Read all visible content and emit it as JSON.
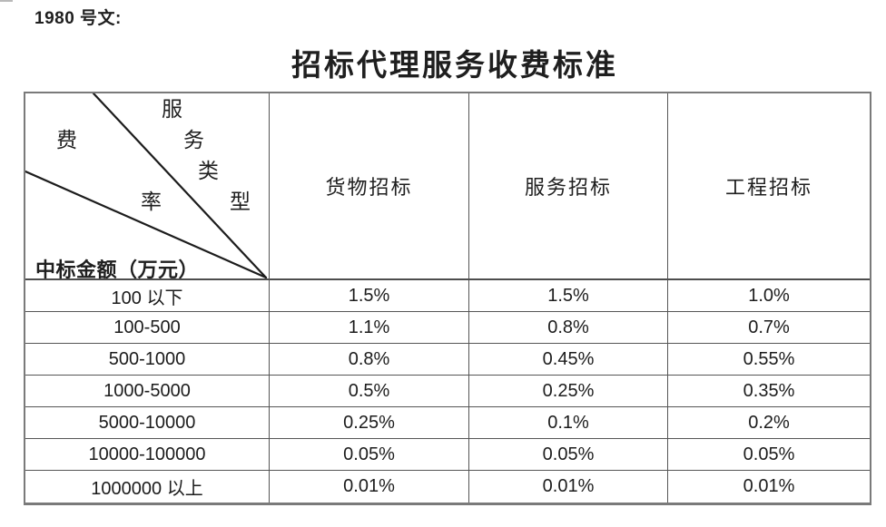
{
  "page": {
    "doc_label": "1980 号文:",
    "title": "招标代理服务收费标准"
  },
  "table": {
    "corner": {
      "service_type_chars": [
        "服",
        "务",
        "类",
        "型"
      ],
      "rate_chars": [
        "费",
        "率"
      ],
      "amount_label": "中标金额（万元）"
    },
    "columns": [
      "货物招标",
      "服务招标",
      "工程招标"
    ],
    "rows": [
      {
        "label": "100 以下",
        "values": [
          "1.5%",
          "1.5%",
          "1.0%"
        ]
      },
      {
        "label": "100-500",
        "values": [
          "1.1%",
          "0.8%",
          "0.7%"
        ]
      },
      {
        "label": "500-1000",
        "values": [
          "0.8%",
          "0.45%",
          "0.55%"
        ]
      },
      {
        "label": "1000-5000",
        "values": [
          "0.5%",
          "0.25%",
          "0.35%"
        ]
      },
      {
        "label": "5000-10000",
        "values": [
          "0.25%",
          "0.1%",
          "0.2%"
        ]
      },
      {
        "label": "10000-100000",
        "values": [
          "0.05%",
          "0.05%",
          "0.05%"
        ]
      },
      {
        "label": "1000000 以上",
        "values": [
          "0.01%",
          "0.01%",
          "0.01%"
        ]
      }
    ]
  },
  "colors": {
    "background": "#ffffff",
    "text": "#1f1f1f",
    "border_inner": "#565656",
    "border_outer": "#7a7a7a"
  }
}
